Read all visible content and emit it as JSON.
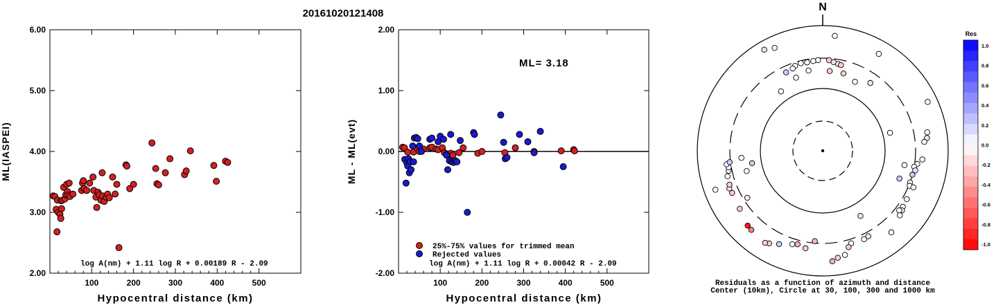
{
  "title": "20161020121408",
  "colors": {
    "accepted": "#d42020",
    "rejected": "#1a1ad0",
    "mark_edge": "#000000"
  },
  "chart_data": [
    {
      "type": "scatter",
      "xlabel": "Hypocentral distance (km)",
      "ylabel": "ML(IASPEI)",
      "xlim": [
        0,
        600
      ],
      "ylim": [
        2.0,
        6.0
      ],
      "xticks": [
        "100",
        "200",
        "300",
        "400",
        "500"
      ],
      "yticks": [
        "2.00",
        "3.00",
        "4.00",
        "5.00",
        "6.00"
      ],
      "formula": "log A(nm) + 1.11 log R + 0.00189 R - 2.09",
      "points": [
        [
          8,
          3.27
        ],
        [
          12,
          3.26
        ],
        [
          15,
          3.05
        ],
        [
          17,
          2.68
        ],
        [
          18,
          3.2
        ],
        [
          20,
          3.0
        ],
        [
          24,
          2.97
        ],
        [
          26,
          2.9
        ],
        [
          27,
          3.19
        ],
        [
          28,
          3.06
        ],
        [
          30,
          3.2
        ],
        [
          33,
          3.41
        ],
        [
          36,
          3.22
        ],
        [
          38,
          3.29
        ],
        [
          40,
          3.46
        ],
        [
          42,
          3.34
        ],
        [
          44,
          3.28
        ],
        [
          46,
          3.48
        ],
        [
          48,
          3.26
        ],
        [
          55,
          3.3
        ],
        [
          76,
          3.36
        ],
        [
          78,
          3.48
        ],
        [
          80,
          3.52
        ],
        [
          82,
          3.39
        ],
        [
          88,
          3.36
        ],
        [
          95,
          3.48
        ],
        [
          103,
          3.58
        ],
        [
          105,
          3.36
        ],
        [
          110,
          3.25
        ],
        [
          112,
          3.08
        ],
        [
          115,
          3.33
        ],
        [
          118,
          3.29
        ],
        [
          122,
          3.2
        ],
        [
          125,
          3.65
        ],
        [
          126,
          3.27
        ],
        [
          130,
          3.18
        ],
        [
          135,
          3.25
        ],
        [
          138,
          3.3
        ],
        [
          142,
          3.24
        ],
        [
          150,
          3.58
        ],
        [
          156,
          3.3
        ],
        [
          160,
          3.46
        ],
        [
          165,
          2.42
        ],
        [
          182,
          3.78
        ],
        [
          184,
          3.76
        ],
        [
          191,
          3.39
        ],
        [
          200,
          3.46
        ],
        [
          244,
          4.14
        ],
        [
          253,
          3.72
        ],
        [
          256,
          3.47
        ],
        [
          260,
          3.45
        ],
        [
          276,
          3.65
        ],
        [
          287,
          3.88
        ],
        [
          322,
          3.62
        ],
        [
          326,
          3.68
        ],
        [
          336,
          4.01
        ],
        [
          392,
          3.77
        ],
        [
          398,
          3.51
        ],
        [
          420,
          3.84
        ],
        [
          425,
          3.82
        ]
      ]
    },
    {
      "type": "scatter",
      "xlabel": "Hypocentral distance (km)",
      "ylabel": "ML - ML(evt)",
      "xlim": [
        0,
        600
      ],
      "ylim": [
        -2.0,
        2.0
      ],
      "xticks": [
        "100",
        "200",
        "300",
        "400",
        "500"
      ],
      "yticks": [
        "-2.00",
        "-1.00",
        "0.00",
        "1.00",
        "2.00"
      ],
      "annotation": "ML= 3.18",
      "formula": "log A(nm) + 1.11 log R + 0.00042 R - 2.09",
      "legend": [
        {
          "label": "25%-75% values for trimmed mean",
          "color": "#d42020"
        },
        {
          "label": "Rejected values",
          "color": "#1a1ad0"
        }
      ],
      "series": [
        {
          "name": "25%-75% values for trimmed mean",
          "color": "#d42020",
          "points": [
            [
              10,
              0.07
            ],
            [
              14,
              0.06
            ],
            [
              22,
              -0.01
            ],
            [
              36,
              -0.01
            ],
            [
              45,
              0.05
            ],
            [
              50,
              0.0
            ],
            [
              55,
              0.02
            ],
            [
              60,
              0.04
            ],
            [
              75,
              0.06
            ],
            [
              80,
              0.07
            ],
            [
              90,
              0.04
            ],
            [
              95,
              0.03
            ],
            [
              105,
              0.06
            ],
            [
              110,
              -0.02
            ],
            [
              115,
              -0.04
            ],
            [
              120,
              -0.05
            ],
            [
              125,
              -0.03
            ],
            [
              130,
              -0.06
            ],
            [
              145,
              -0.02
            ],
            [
              155,
              0.06
            ],
            [
              190,
              -0.03
            ],
            [
              200,
              0.0
            ],
            [
              255,
              -0.02
            ],
            [
              280,
              0.06
            ],
            [
              325,
              0.0
            ],
            [
              390,
              0.01
            ],
            [
              420,
              0.03
            ],
            [
              422,
              0.01
            ]
          ]
        },
        {
          "name": "Rejected values",
          "color": "#1a1ad0",
          "points": [
            [
              15,
              -0.13
            ],
            [
              18,
              -0.52
            ],
            [
              20,
              -0.19
            ],
            [
              22,
              -0.24
            ],
            [
              24,
              -0.12
            ],
            [
              26,
              -0.35
            ],
            [
              28,
              -0.17
            ],
            [
              30,
              -0.3
            ],
            [
              34,
              0.09
            ],
            [
              36,
              -0.17
            ],
            [
              38,
              0.22
            ],
            [
              42,
              0.23
            ],
            [
              46,
              0.21
            ],
            [
              50,
              0.09
            ],
            [
              55,
              0.0
            ],
            [
              75,
              0.2
            ],
            [
              80,
              0.22
            ],
            [
              95,
              0.16
            ],
            [
              100,
              0.25
            ],
            [
              108,
              0.2
            ],
            [
              115,
              -0.06
            ],
            [
              118,
              -0.3
            ],
            [
              122,
              -0.15
            ],
            [
              125,
              0.28
            ],
            [
              128,
              -0.17
            ],
            [
              132,
              -0.18
            ],
            [
              136,
              -0.15
            ],
            [
              140,
              -0.17
            ],
            [
              148,
              0.18
            ],
            [
              165,
              -1.0
            ],
            [
              180,
              0.31
            ],
            [
              182,
              0.28
            ],
            [
              245,
              0.6
            ],
            [
              252,
              0.15
            ],
            [
              256,
              -0.12
            ],
            [
              260,
              -0.1
            ],
            [
              290,
              0.28
            ],
            [
              310,
              0.16
            ],
            [
              325,
              -0.02
            ],
            [
              340,
              0.33
            ],
            [
              395,
              -0.25
            ]
          ]
        }
      ]
    },
    {
      "type": "scatter",
      "subtype": "polar",
      "north_label": "N",
      "caption": "Residuals as a function of azimuth and distance",
      "caption2": "Center (10km), Circle at 30, 100, 300 and 1000 km",
      "colorbar": {
        "title": "Res",
        "ticks": [
          "1.0",
          "0.8",
          "0.6",
          "0.4",
          "0.2",
          "0.0",
          "-0.2",
          "-0.4",
          "-0.6",
          "-0.8",
          "-1.0"
        ],
        "min": -1.0,
        "max": 1.0
      },
      "points": [
        [
          6,
          700,
          0.0
        ],
        [
          330,
          730,
          0.1
        ],
        [
          335,
          650,
          0.0
        ],
        [
          30,
          610,
          0.0
        ],
        [
          65,
          700,
          0.0
        ],
        [
          -3,
          280,
          0.0
        ],
        [
          4,
          280,
          -0.2
        ],
        [
          7,
          265,
          -0.1
        ],
        [
          10,
          255,
          -0.1
        ],
        [
          12,
          250,
          -0.2
        ],
        [
          -6,
          275,
          0.0
        ],
        [
          -10,
          270,
          0.0
        ],
        [
          -14,
          275,
          0.0
        ],
        [
          -18,
          265,
          0.0
        ],
        [
          -20,
          250,
          0.0
        ],
        [
          -25,
          240,
          0.2
        ],
        [
          -20,
          175,
          0.0
        ],
        [
          -35,
          145,
          0.0
        ],
        [
          -10,
          200,
          0.0
        ],
        [
          5,
          190,
          -0.2
        ],
        [
          15,
          190,
          -0.2
        ],
        [
          25,
          165,
          0.0
        ],
        [
          35,
          210,
          -0.1
        ],
        [
          75,
          130,
          0.0
        ],
        [
          80,
          490,
          0.0
        ],
        [
          83,
          470,
          0.1
        ],
        [
          95,
          390,
          0.0
        ],
        [
          98,
          330,
          0.0
        ],
        [
          100,
          300,
          0.0
        ],
        [
          102,
          320,
          0.1
        ],
        [
          105,
          300,
          0.2
        ],
        [
          110,
          300,
          0.0
        ],
        [
          112,
          310,
          0.0
        ],
        [
          120,
          350,
          0.0
        ],
        [
          125,
          360,
          0.0
        ],
        [
          127,
          380,
          0.1
        ],
        [
          128,
          350,
          0.0
        ],
        [
          130,
          400,
          0.0
        ],
        [
          112,
          360,
          0.0
        ],
        [
          140,
          500,
          0.0
        ],
        [
          85,
          420,
          0.0
        ],
        [
          100,
          210,
          0.0
        ],
        [
          110,
          200,
          0.2
        ],
        [
          150,
          160,
          0.1
        ],
        [
          152,
          350,
          0.1
        ],
        [
          155,
          360,
          0.0
        ],
        [
          163,
          350,
          0.0
        ],
        [
          165,
          390,
          -0.2
        ],
        [
          168,
          500,
          0.0
        ],
        [
          172,
          530,
          -0.2
        ],
        [
          175,
          590,
          -0.3
        ],
        [
          190,
          380,
          -0.2
        ],
        [
          195,
          350,
          -0.3
        ],
        [
          198,
          370,
          0.0
        ],
        [
          205,
          440,
          0.2
        ],
        [
          210,
          510,
          -0.2
        ],
        [
          212,
          540,
          -0.2
        ],
        [
          222,
          500,
          -0.5
        ],
        [
          225,
          490,
          -0.9
        ],
        [
          235,
          410,
          -0.2
        ],
        [
          238,
          260,
          -0.1
        ],
        [
          245,
          390,
          -0.2
        ],
        [
          248,
          400,
          -0.1
        ],
        [
          250,
          380,
          -0.2
        ],
        [
          255,
          370,
          0.0
        ],
        [
          258,
          340,
          0.0
        ],
        [
          260,
          330,
          0.0
        ],
        [
          262,
          350,
          0.0
        ],
        [
          263,
          310,
          0.2
        ],
        [
          265,
          200,
          0.0
        ],
        [
          255,
          180,
          0.0
        ],
        [
          260,
          140,
          0.2
        ],
        [
          250,
          660,
          0.0
        ],
        [
          185,
          280,
          -0.3
        ]
      ]
    }
  ]
}
